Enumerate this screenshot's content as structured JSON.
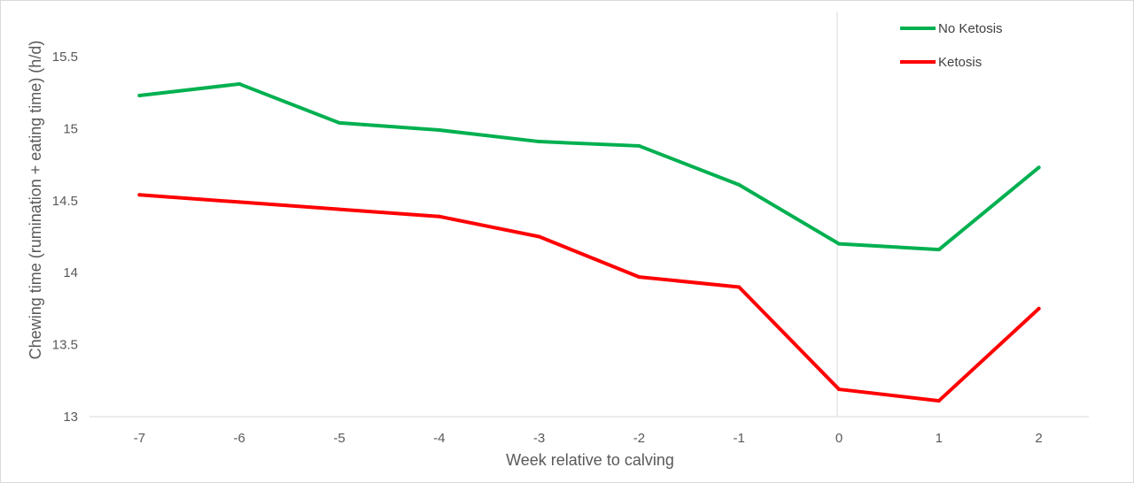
{
  "chart_data": {
    "type": "line",
    "title": "",
    "xlabel": "Week relative to calving",
    "ylabel": "Chewing  time (rumination + eating time) (h/d)",
    "categories": [
      "-7",
      "-6",
      "-5",
      "-4",
      "-3",
      "-2",
      "-1",
      "0",
      "1",
      "2"
    ],
    "ylim": [
      13,
      15.5
    ],
    "yticks": [
      13,
      13.5,
      14,
      14.5,
      15,
      15.5
    ],
    "ytick_labels": [
      "13",
      "13.5",
      "14",
      "14.5",
      "15",
      "15.5"
    ],
    "reference_line_x": "0",
    "grid": false,
    "legend": "top-right",
    "series": [
      {
        "name": "No Ketosis",
        "color": "#00b050",
        "values": [
          15.23,
          15.31,
          15.04,
          14.99,
          14.91,
          14.88,
          14.61,
          14.2,
          14.16,
          14.73
        ]
      },
      {
        "name": "Ketosis",
        "color": "#ff0000",
        "values": [
          14.54,
          14.49,
          14.44,
          14.39,
          14.25,
          13.97,
          13.9,
          13.19,
          13.11,
          13.75
        ]
      }
    ]
  }
}
